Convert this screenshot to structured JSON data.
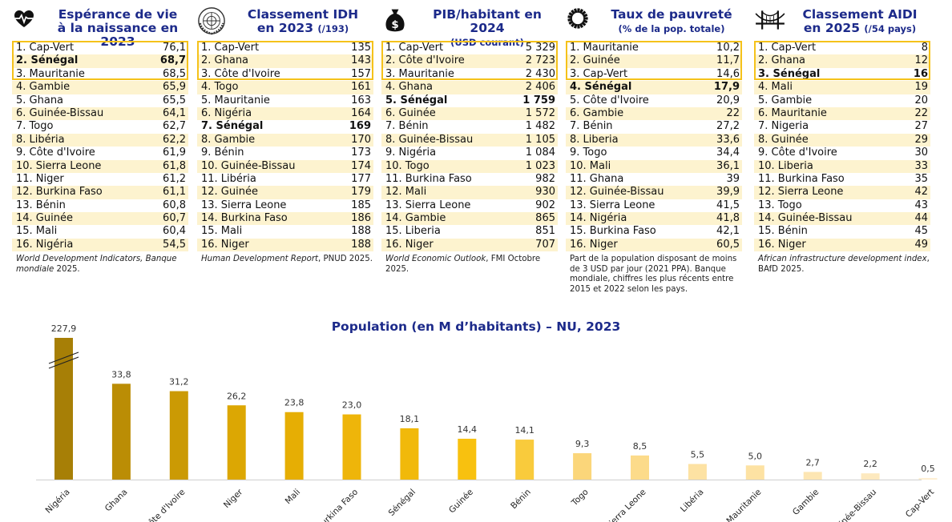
{
  "panels": [
    {
      "title": "Espérance de vie à la naissance en 2023",
      "title_line1": "Espérance de vie",
      "title_line2": "à la naissance en 2023",
      "subtitle": "",
      "icon": "heart-pulse-icon",
      "rows": [
        {
          "label": "1. Cap-Vert",
          "value": "76,1"
        },
        {
          "label": "2. Sénégal",
          "value": "68,7",
          "highlight": true
        },
        {
          "label": "3. Mauritanie",
          "value": "68,5"
        },
        {
          "label": "4. Gambie",
          "value": "65,9"
        },
        {
          "label": "5. Ghana",
          "value": "65,5"
        },
        {
          "label": "6. Guinée-Bissau",
          "value": "64,1"
        },
        {
          "label": "7. Togo",
          "value": "62,7"
        },
        {
          "label": "8. Libéria",
          "value": "62,2"
        },
        {
          "label": "9. Côte d'Ivoire",
          "value": "61,9"
        },
        {
          "label": "10. Sierra Leone",
          "value": "61,8"
        },
        {
          "label": "11. Niger",
          "value": "61,2"
        },
        {
          "label": "12. Burkina Faso",
          "value": "61,1"
        },
        {
          "label": "13. Bénin",
          "value": "60,8"
        },
        {
          "label": "14. Guinée",
          "value": "60,7"
        },
        {
          "label": "15. Mali",
          "value": "60,4"
        },
        {
          "label": "16. Nigéria",
          "value": "54,5"
        }
      ],
      "source_italic": "World Development Indicators, Banque mondiale",
      "source_rest": " 2025."
    },
    {
      "title": "Classement IDH en 2023",
      "title_line1": "Classement IDH",
      "title_line2": "en 2023",
      "subtitle": "(/193)",
      "icon": "un-emblem-icon",
      "rows": [
        {
          "label": "1. Cap-Vert",
          "value": "135"
        },
        {
          "label": "2. Ghana",
          "value": "143"
        },
        {
          "label": "3. Côte d'Ivoire",
          "value": "157"
        },
        {
          "label": "4. Togo",
          "value": "161"
        },
        {
          "label": "5. Mauritanie",
          "value": "163"
        },
        {
          "label": "6. Nigéria",
          "value": "164"
        },
        {
          "label": "7. Sénégal",
          "value": "169",
          "highlight": true
        },
        {
          "label": "8. Gambie",
          "value": "170"
        },
        {
          "label": "9. Bénin",
          "value": "173"
        },
        {
          "label": "10. Guinée-Bissau",
          "value": "174"
        },
        {
          "label": "11. Libéria",
          "value": "177"
        },
        {
          "label": "12. Guinée",
          "value": "179"
        },
        {
          "label": "13. Sierra Leone",
          "value": "185"
        },
        {
          "label": "14. Burkina Faso",
          "value": "186"
        },
        {
          "label": "15. Mali",
          "value": "188"
        },
        {
          "label": "16. Niger",
          "value": "188"
        }
      ],
      "source_italic": "Human Development Report",
      "source_rest": ", PNUD 2025."
    },
    {
      "title": "PIB/habitant en 2024",
      "title_line1": "PIB/habitant en 2024",
      "title_line2": "",
      "subtitle": "(USD courant)",
      "icon": "money-bag-icon",
      "rows": [
        {
          "label": "1. Cap-Vert",
          "value": "5 329"
        },
        {
          "label": "2. Côte d'Ivoire",
          "value": "2 723"
        },
        {
          "label": "3. Mauritanie",
          "value": "2 430"
        },
        {
          "label": "4. Ghana",
          "value": "2 406"
        },
        {
          "label": "5. Sénégal",
          "value": "1 759",
          "highlight": true
        },
        {
          "label": "6. Guinée",
          "value": "1 572"
        },
        {
          "label": "7. Bénin",
          "value": "1 482"
        },
        {
          "label": "8. Guinée-Bissau",
          "value": "1 105"
        },
        {
          "label": "9. Nigéria",
          "value": "1 084"
        },
        {
          "label": "10. Togo",
          "value": "1 023"
        },
        {
          "label": "11. Burkina Faso",
          "value": "982"
        },
        {
          "label": "12. Mali",
          "value": "930"
        },
        {
          "label": "13. Sierra Leone",
          "value": "902"
        },
        {
          "label": "14. Gambie",
          "value": "865"
        },
        {
          "label": "15. Liberia",
          "value": "851"
        },
        {
          "label": "16. Niger",
          "value": "707"
        }
      ],
      "source_italic": "World Economic Outlook",
      "source_rest": ", FMI Octobre 2025."
    },
    {
      "title": "Taux de pauvreté",
      "title_line1": "Taux de pauvreté",
      "title_line2": "",
      "subtitle": "(% de la pop. totale)",
      "icon": "sdg-wheel-icon",
      "rows": [
        {
          "label": "1. Mauritanie",
          "value": "10,2"
        },
        {
          "label": "2. Guinée",
          "value": "11,7"
        },
        {
          "label": "3. Cap-Vert",
          "value": "14,6"
        },
        {
          "label": "4. Sénégal",
          "value": "17,9",
          "highlight": true
        },
        {
          "label": "5. Côte d'Ivoire",
          "value": "20,9"
        },
        {
          "label": "6. Gambie",
          "value": "22"
        },
        {
          "label": "7. Bénin",
          "value": "27,2"
        },
        {
          "label": "8. Liberia",
          "value": "33,6"
        },
        {
          "label": "9. Togo",
          "value": "34,4"
        },
        {
          "label": "10. Mali",
          "value": "36,1"
        },
        {
          "label": "11. Ghana",
          "value": "39"
        },
        {
          "label": "12. Guinée-Bissau",
          "value": "39,9"
        },
        {
          "label": "13. Sierra Leone",
          "value": "41,5"
        },
        {
          "label": "14. Nigéria",
          "value": "41,8"
        },
        {
          "label": "15. Burkina Faso",
          "value": "42,1"
        },
        {
          "label": "16. Niger",
          "value": "60,5"
        }
      ],
      "source_italic": "",
      "source_rest": "Part de la population disposant de moins de 3 USD par jour (2021 PPA). Banque mondiale, chiffres les plus récents entre 2015 et 2022 selon les pays."
    },
    {
      "title": "Classement AIDI en 2025",
      "title_line1": "Classement AIDI",
      "title_line2": "en 2025",
      "subtitle": "(/54 pays)",
      "icon": "bridge-icon",
      "rows": [
        {
          "label": "1. Cap-Vert",
          "value": "8"
        },
        {
          "label": "2. Ghana",
          "value": "12"
        },
        {
          "label": "3. Sénégal",
          "value": "16",
          "highlight": true
        },
        {
          "label": "4. Mali",
          "value": "19"
        },
        {
          "label": "5. Gambie",
          "value": "20"
        },
        {
          "label": "6. Mauritanie",
          "value": "22"
        },
        {
          "label": "7. Nigeria",
          "value": "27"
        },
        {
          "label": "8. Guinée",
          "value": "29"
        },
        {
          "label": "9. Côte d'Ivoire",
          "value": "30"
        },
        {
          "label": "10. Liberia",
          "value": "33"
        },
        {
          "label": "11. Burkina Faso",
          "value": "35"
        },
        {
          "label": "12. Sierra Leone",
          "value": "42"
        },
        {
          "label": "13. Togo",
          "value": "43"
        },
        {
          "label": "14. Guinée-Bissau",
          "value": "44"
        },
        {
          "label": "15. Bénin",
          "value": "45"
        },
        {
          "label": "16. Niger",
          "value": "49"
        }
      ],
      "source_italic": "African infrastructure development index",
      "source_rest": ", BAfD 2025."
    }
  ],
  "chart_data": {
    "type": "bar",
    "title": "Population (en M d’habitants) – NU, 2023",
    "categories": [
      "Nigéria",
      "Ghana",
      "Côte d'Ivoire",
      "Niger",
      "Mali",
      "Burkina Faso",
      "Sénégal",
      "Guinée",
      "Bénin",
      "Togo",
      "Sierra Leone",
      "Libéria",
      "Mauritanie",
      "Gambie",
      "Guinée-Bissau",
      "Cap-Vert"
    ],
    "values": [
      227.9,
      33.8,
      31.2,
      26.2,
      23.8,
      23.0,
      18.1,
      14.4,
      14.1,
      9.3,
      8.5,
      5.5,
      5.0,
      2.7,
      2.2,
      0.5
    ],
    "value_labels": [
      "227,9",
      "33,8",
      "31,2",
      "26,2",
      "23,8",
      "23,0",
      "18,1",
      "14,4",
      "14,1",
      "9,3",
      "8,5",
      "5,5",
      "5,0",
      "2,7",
      "2,2",
      "0,5"
    ],
    "colors": [
      "#a77f06",
      "#bb8d05",
      "#cb9a04",
      "#dca703",
      "#e6ae04",
      "#eeb50a",
      "#f1b90a",
      "#f8c10f",
      "#f9cb3c",
      "#fbd67a",
      "#fcdb8a",
      "#fde2a3",
      "#fde2a3",
      "#fde6b3",
      "#fde9bf",
      "#fdedcc"
    ],
    "broken_axis": true,
    "xlabel": "",
    "ylabel": ""
  }
}
